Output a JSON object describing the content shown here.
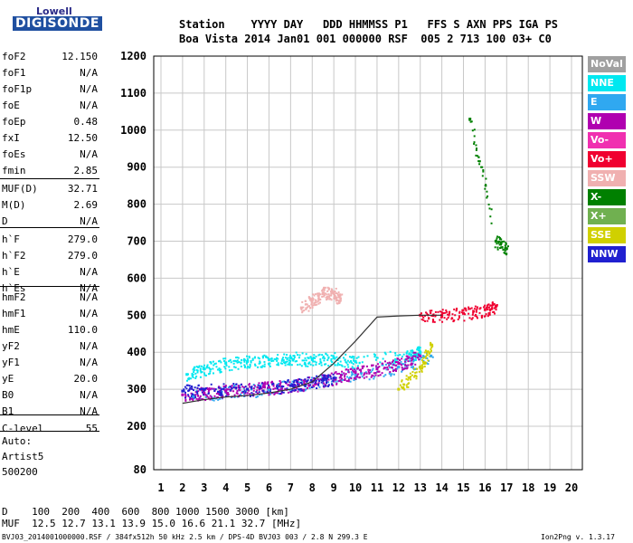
{
  "logo": {
    "line1": "Lowell",
    "line2": "DIGISONDE"
  },
  "header": {
    "row1": "Station    YYYY DAY   DDD HHMMSS P1   FFS S AXN PPS IGA PS",
    "row2": "Boa Vista 2014 Jan01 001 000000 RSF  005 2 713 100 03+ C0"
  },
  "params": [
    {
      "name": "foF2",
      "value": "12.150"
    },
    {
      "name": "foF1",
      "value": "N/A"
    },
    {
      "name": "foF1p",
      "value": "N/A"
    },
    {
      "name": "foE",
      "value": "N/A"
    },
    {
      "name": "foEp",
      "value": "0.48"
    },
    {
      "name": "fxI",
      "value": "12.50"
    },
    {
      "name": "foEs",
      "value": "N/A"
    },
    {
      "name": "fmin",
      "value": "2.85"
    },
    {
      "name": "MUF(D)",
      "value": "32.71"
    },
    {
      "name": "M(D)",
      "value": "2.69"
    },
    {
      "name": "D",
      "value": "N/A"
    },
    {
      "name": "h`F",
      "value": "279.0"
    },
    {
      "name": "h`F2",
      "value": "279.0"
    },
    {
      "name": "h`E",
      "value": "N/A"
    },
    {
      "name": "h`Es",
      "value": "N/A"
    },
    {
      "name": "hmF2",
      "value": "N/A"
    },
    {
      "name": "hmF1",
      "value": "N/A"
    },
    {
      "name": "hmE",
      "value": "110.0"
    },
    {
      "name": "yF2",
      "value": "N/A"
    },
    {
      "name": "yF1",
      "value": "N/A"
    },
    {
      "name": "yE",
      "value": "20.0"
    },
    {
      "name": "B0",
      "value": "N/A"
    },
    {
      "name": "B1",
      "value": "N/A"
    },
    {
      "name": "C-level",
      "value": "55"
    }
  ],
  "auto": {
    "l1": "Auto:",
    "l2": "Artist5",
    "l3": "500200"
  },
  "legend": [
    {
      "label": "NoVal",
      "color": "#a0a0a0"
    },
    {
      "label": "NNE",
      "color": "#00e8f0"
    },
    {
      "label": "E",
      "color": "#30a8f0"
    },
    {
      "label": "W",
      "color": "#b000b0"
    },
    {
      "label": "Vo-",
      "color": "#f030b0"
    },
    {
      "label": "Vo+",
      "color": "#f00030"
    },
    {
      "label": "SSW",
      "color": "#f0b0b0"
    },
    {
      "label": "X-",
      "color": "#008000"
    },
    {
      "label": "X+",
      "color": "#70b050"
    },
    {
      "label": "SSE",
      "color": "#d0d000"
    },
    {
      "label": "NNW",
      "color": "#2020d0"
    }
  ],
  "bottom": {
    "row1": "D    100  200  400  600  800 1000 1500 3000 [km]",
    "row2": "MUF  12.5 12.7 13.1 13.9 15.0 16.6 21.1 32.7 [MHz]"
  },
  "footer": {
    "left": "BVJ03_2014001000000.RSF / 384fx512h 50 kHz 2.5 km / DPS-4D BVJ03 003 / 2.8 N 299.3 E",
    "right": "Ion2Png v. 1.3.17"
  },
  "chart_data": {
    "type": "scatter",
    "xlabel": "",
    "ylabel": "",
    "xlim": [
      1,
      20
    ],
    "ylim": [
      80,
      1200
    ],
    "xticks": [
      1,
      2,
      3,
      4,
      5,
      6,
      7,
      8,
      9,
      10,
      11,
      12,
      13,
      14,
      15,
      16,
      17,
      18,
      19,
      20
    ],
    "yticks": [
      80,
      200,
      300,
      400,
      500,
      600,
      700,
      800,
      900,
      1000,
      1100,
      1200
    ],
    "grid": true,
    "legend_position": "right",
    "trace": [
      [
        2.0,
        262
      ],
      [
        3,
        272
      ],
      [
        4,
        279
      ],
      [
        5,
        283
      ],
      [
        6,
        290
      ],
      [
        7,
        300
      ],
      [
        8,
        320
      ],
      [
        9,
        370
      ],
      [
        10,
        430
      ],
      [
        11,
        495
      ],
      [
        12,
        498
      ],
      [
        13,
        500
      ],
      [
        14,
        500
      ]
    ],
    "series": [
      {
        "name": "NNE",
        "points": [
          [
            2.2,
            340
          ],
          [
            3,
            355
          ],
          [
            4,
            370
          ],
          [
            5,
            375
          ],
          [
            6,
            380
          ],
          [
            7,
            385
          ],
          [
            8,
            380
          ],
          [
            9,
            385
          ],
          [
            10,
            375
          ],
          [
            12.5,
            395
          ],
          [
            13,
            400
          ]
        ]
      },
      {
        "name": "E",
        "points": [
          [
            2.5,
            280
          ],
          [
            4,
            295
          ],
          [
            6,
            300
          ],
          [
            8,
            320
          ],
          [
            10,
            340
          ],
          [
            12,
            360
          ],
          [
            13.5,
            390
          ]
        ]
      },
      {
        "name": "W",
        "points": [
          [
            2,
            285
          ],
          [
            3,
            290
          ],
          [
            4,
            295
          ],
          [
            5,
            300
          ],
          [
            6,
            305
          ],
          [
            7,
            310
          ],
          [
            8,
            320
          ],
          [
            9,
            330
          ],
          [
            10,
            345
          ],
          [
            11,
            355
          ],
          [
            12,
            370
          ],
          [
            13,
            390
          ]
        ]
      },
      {
        "name": "SSW",
        "points": [
          [
            7.5,
            520
          ],
          [
            8,
            540
          ],
          [
            8.5,
            560
          ],
          [
            9,
            560
          ],
          [
            9.3,
            540
          ]
        ]
      },
      {
        "name": "NNW",
        "points": [
          [
            2,
            295
          ],
          [
            3,
            300
          ],
          [
            5,
            300
          ],
          [
            7,
            310
          ],
          [
            8,
            320
          ],
          [
            9,
            330
          ]
        ]
      },
      {
        "name": "Vo+",
        "points": [
          [
            13,
            500
          ],
          [
            14,
            500
          ],
          [
            15,
            505
          ],
          [
            16,
            515
          ],
          [
            16.5,
            525
          ]
        ]
      },
      {
        "name": "X-",
        "points": [
          [
            15.3,
            1030
          ],
          [
            16.5,
            700
          ],
          [
            17,
            680
          ]
        ]
      },
      {
        "name": "SSE",
        "points": [
          [
            12,
            300
          ],
          [
            13,
            360
          ],
          [
            13.5,
            420
          ]
        ]
      }
    ]
  }
}
